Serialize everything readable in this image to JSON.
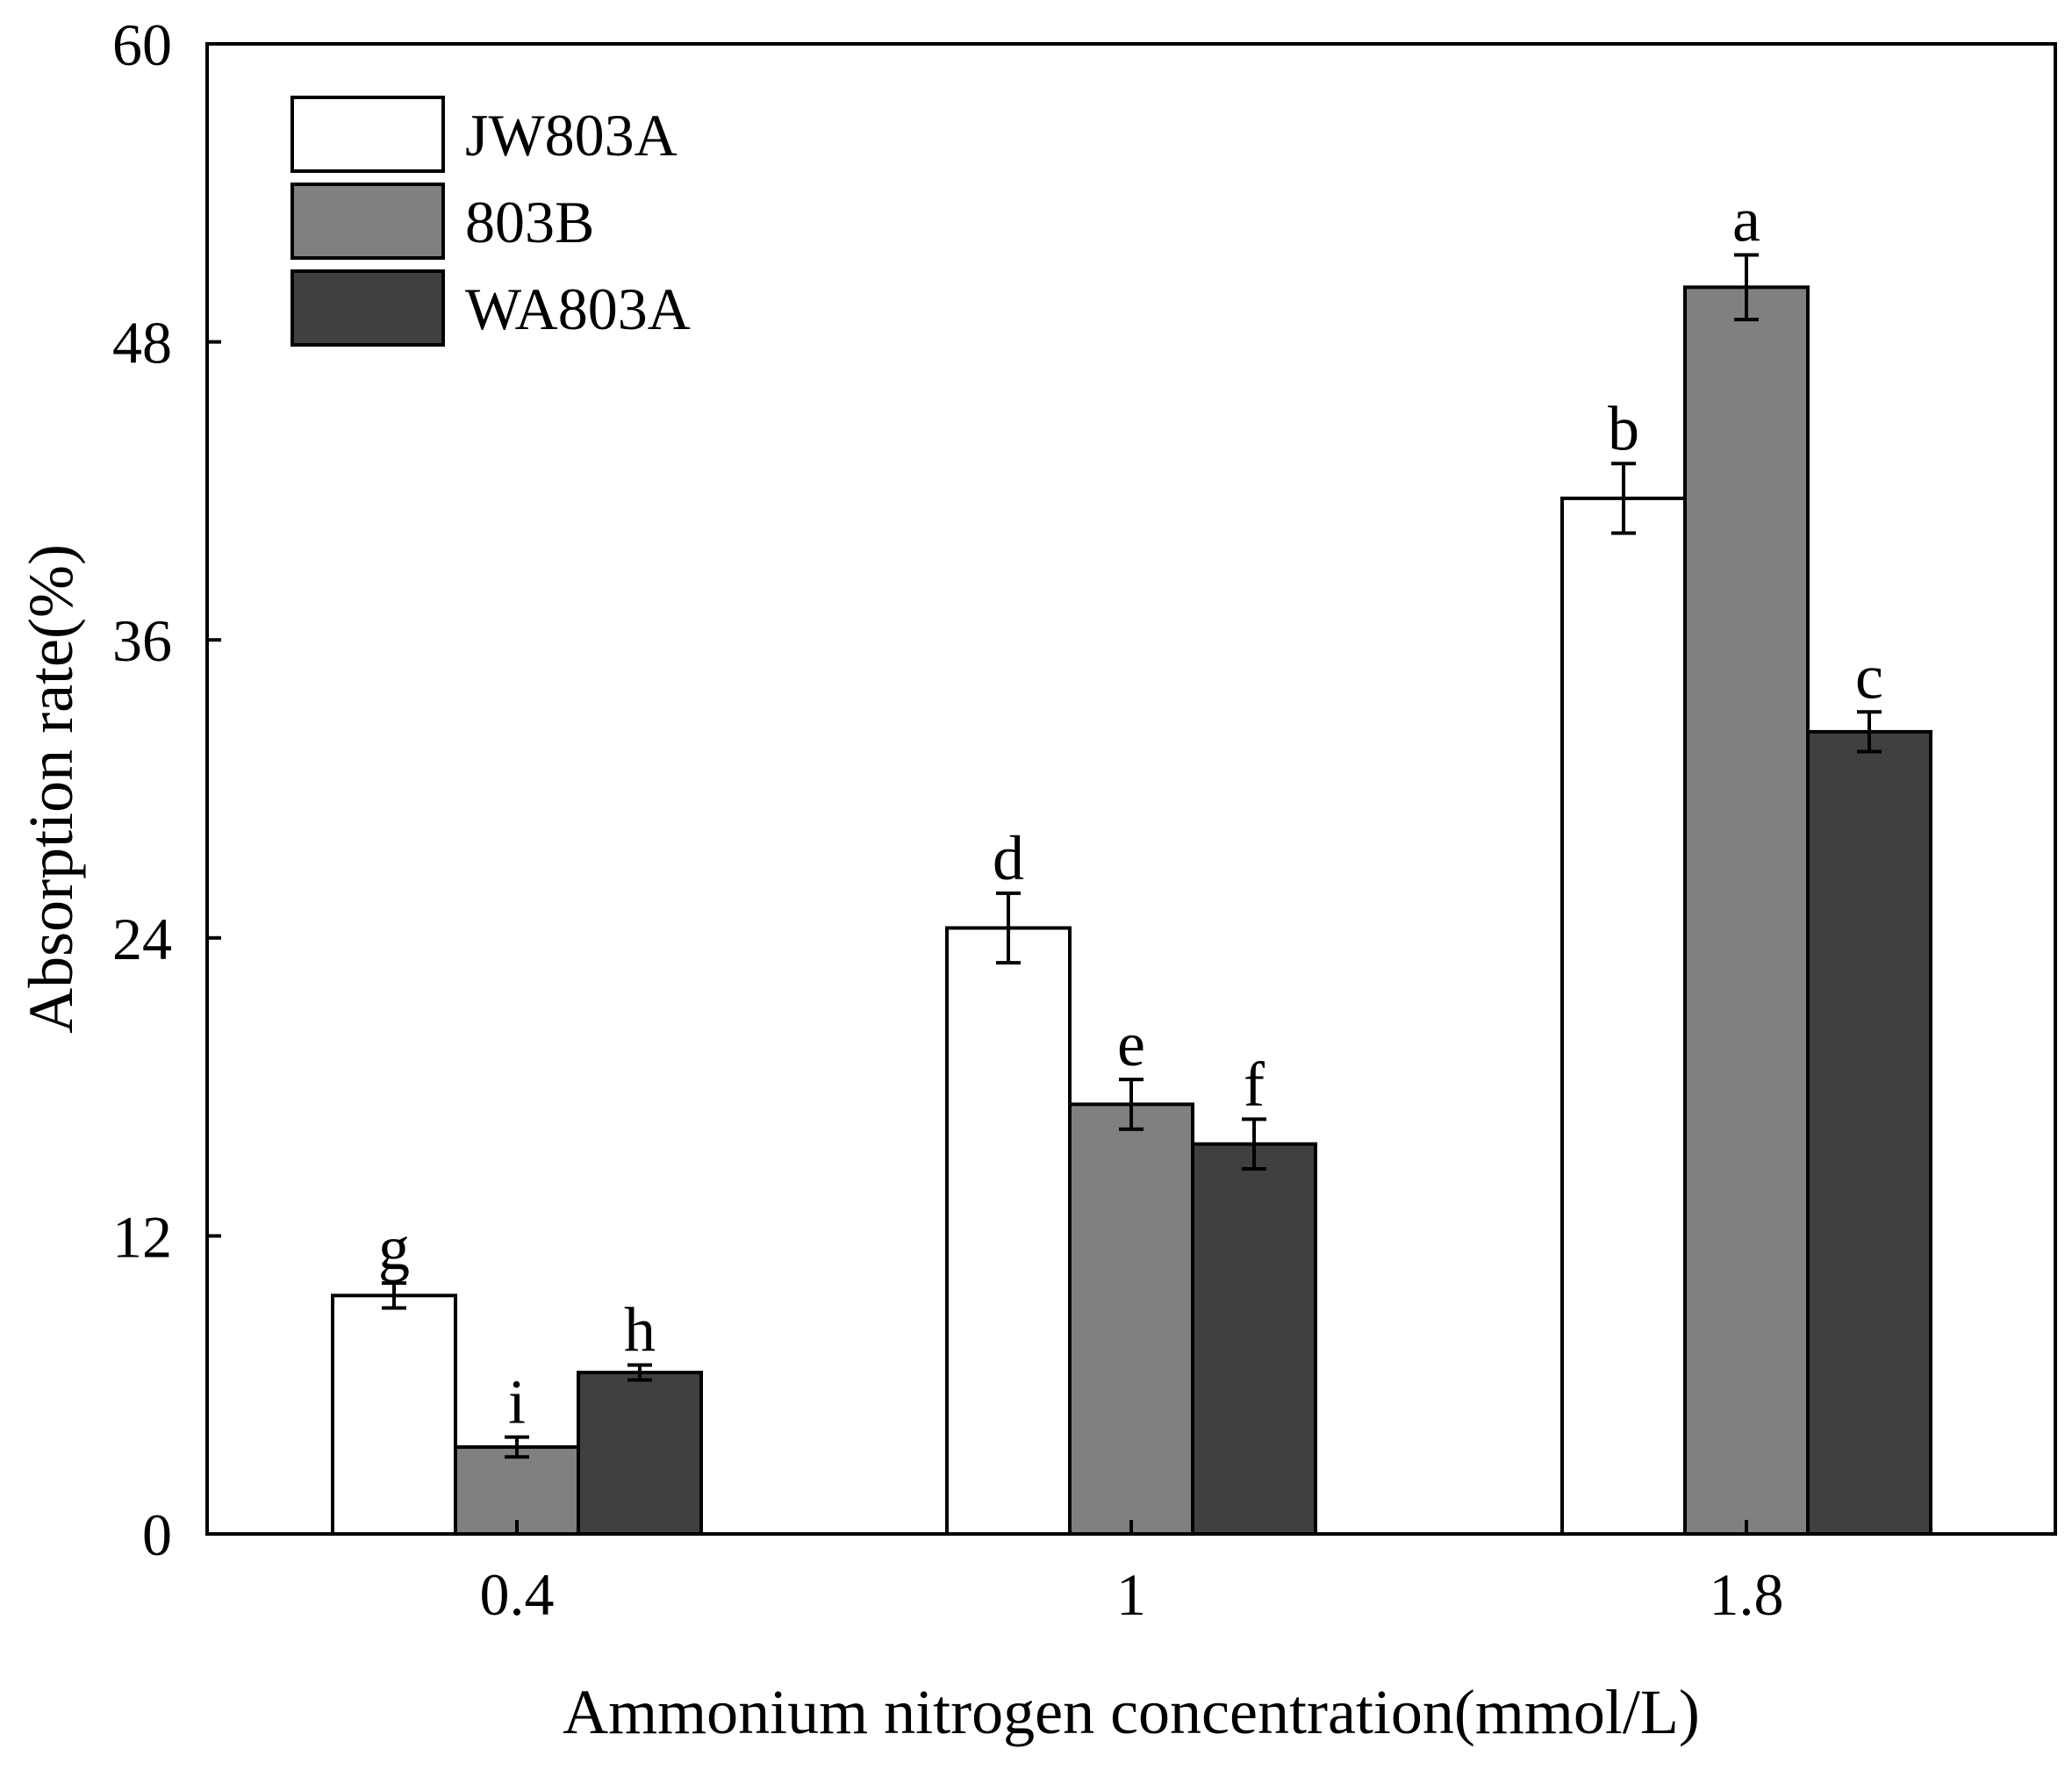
{
  "chart_data": {
    "type": "bar",
    "title": "",
    "xlabel": "Ammonium nitrogen concentration(mmol/L)",
    "ylabel": "Absorption rate(%)",
    "categories": [
      "0.4",
      "1",
      "1.8"
    ],
    "ylim": [
      0,
      60
    ],
    "yticks": [
      "0",
      "12",
      "24",
      "36",
      "48",
      "60"
    ],
    "legend_position": "top-left",
    "grid": false,
    "series": [
      {
        "name": "JW803A",
        "color": "#ffffff",
        "values": [
          9.6,
          24.4,
          41.7
        ],
        "errors": [
          0.5,
          1.4,
          1.4
        ],
        "labels": [
          "g",
          "d",
          "b"
        ]
      },
      {
        "name": "803B",
        "color": "#808080",
        "values": [
          3.5,
          17.3,
          50.2
        ],
        "errors": [
          0.4,
          1.0,
          1.3
        ],
        "labels": [
          "i",
          "e",
          "a"
        ]
      },
      {
        "name": "WA803A",
        "color": "#404040",
        "values": [
          6.5,
          15.7,
          32.3
        ],
        "errors": [
          0.3,
          1.0,
          0.8
        ],
        "labels": [
          "h",
          "f",
          "c"
        ]
      }
    ]
  }
}
